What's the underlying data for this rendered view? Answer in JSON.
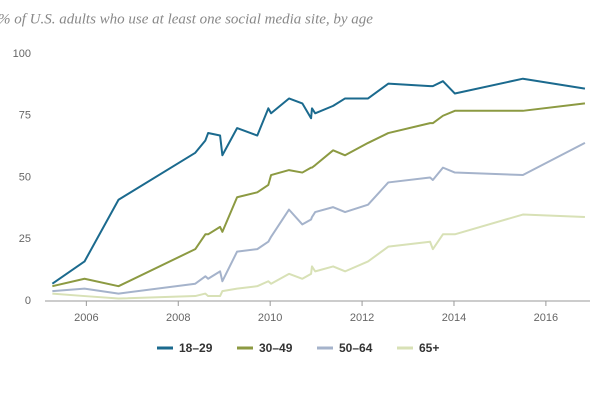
{
  "chart_data": {
    "type": "line",
    "title": "% of U.S. adults who use at least one social media site, by age",
    "x": [
      2005.26,
      2005.96,
      2006.7,
      2008.37,
      2008.59,
      2008.65,
      2008.91,
      2008.96,
      2009.28,
      2009.72,
      2009.96,
      2010.02,
      2010.41,
      2010.7,
      2010.89,
      2010.91,
      2010.98,
      2011.37,
      2011.63,
      2012.13,
      2012.57,
      2013.48,
      2013.54,
      2013.76,
      2014.02,
      2015.5,
      2016.85
    ],
    "series": [
      {
        "name": "18–29",
        "color": "#1b6a8e",
        "values": [
          7,
          16,
          41,
          60,
          65,
          68,
          67,
          59,
          70,
          67,
          78,
          76,
          82,
          80,
          74,
          78,
          76,
          79,
          82,
          82,
          88,
          87,
          87,
          89,
          84,
          90,
          86
        ]
      },
      {
        "name": "30–49",
        "color": "#8c9a42",
        "values": [
          6,
          9,
          6,
          21,
          27,
          27,
          30,
          28,
          42,
          44,
          47,
          51,
          53,
          52,
          54,
          54,
          55,
          61,
          59,
          64,
          68,
          72,
          72,
          75,
          77,
          77,
          80
        ]
      },
      {
        "name": "50–64",
        "color": "#a5b3cb",
        "values": [
          4,
          5,
          3,
          7,
          10,
          9,
          12,
          8,
          20,
          21,
          24,
          26,
          37,
          31,
          33,
          34,
          36,
          38,
          36,
          39,
          48,
          50,
          49,
          54,
          52,
          51,
          64
        ]
      },
      {
        "name": "65+",
        "color": "#d8e1b6",
        "values": [
          3,
          2,
          1,
          2,
          3,
          2,
          2,
          4,
          5,
          6,
          8,
          7,
          11,
          9,
          11,
          14,
          12,
          14,
          12,
          16,
          22,
          24,
          21,
          27,
          27,
          35,
          34
        ]
      }
    ],
    "xlim": [
      2005.1,
      2016.96
    ],
    "xticks": [
      2006,
      2008,
      2010,
      2012,
      2014,
      2016
    ],
    "ylim": [
      0,
      100
    ],
    "yticks": [
      0,
      25,
      50,
      75,
      100
    ],
    "grid": false
  }
}
